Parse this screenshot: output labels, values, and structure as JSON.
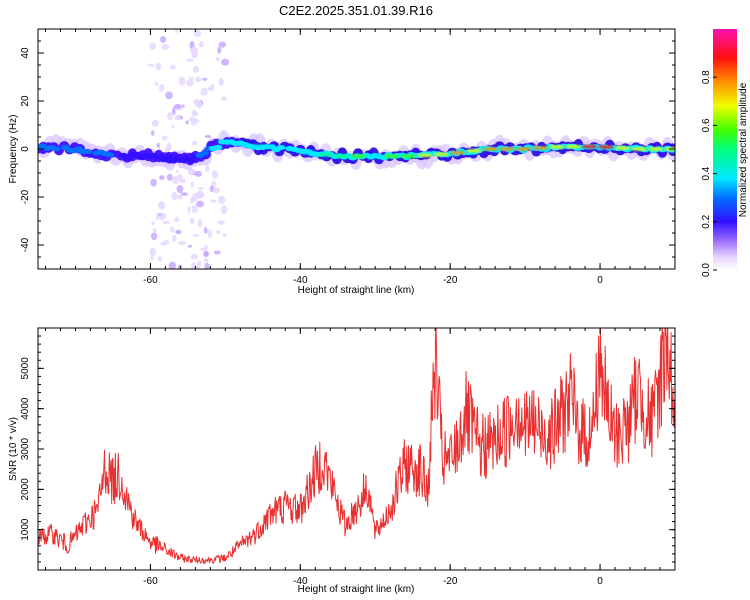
{
  "title": "C2E2.2025.351.01.39.R16",
  "chart_data": [
    {
      "type": "heatmap",
      "xlabel": "Height of straight line (km)",
      "ylabel": "Frequency (Hz)",
      "xlim": [
        -75,
        10
      ],
      "ylim": [
        -50,
        50
      ],
      "x_ticks": [
        -60,
        -40,
        -20,
        0
      ],
      "x_tick_labels": [
        "-60",
        "-40",
        "-20",
        "0"
      ],
      "y_ticks": [
        -40,
        -20,
        0,
        20,
        40
      ],
      "y_tick_labels": [
        "-40",
        "-20",
        "0",
        "20",
        "40"
      ],
      "colorbar": {
        "label": "Normalized spectral amplitude",
        "range": [
          0,
          1
        ],
        "ticks": [
          0.0,
          0.2,
          0.4,
          0.6,
          0.8
        ],
        "tick_labels": [
          "0.0",
          "0.2",
          "0.4",
          "0.6",
          "0.8"
        ]
      },
      "ridge": {
        "x": [
          -75,
          -70,
          -65,
          -60,
          -55,
          -50,
          -45,
          -40,
          -35,
          -30,
          -25,
          -20,
          -15,
          -10,
          -5,
          0,
          5,
          10
        ],
        "freq": [
          1,
          0,
          -3,
          -3,
          -5,
          3,
          1,
          -1,
          -3,
          -3,
          -3,
          -2,
          0,
          0,
          1,
          1,
          0,
          0
        ],
        "amplitude": [
          0.35,
          0.3,
          0.3,
          0.25,
          0.25,
          0.45,
          0.45,
          0.5,
          0.5,
          0.65,
          0.7,
          0.75,
          0.8,
          0.9,
          0.9,
          0.95,
          0.9,
          0.7
        ]
      },
      "noise_band_x": [
        -60,
        -50
      ]
    },
    {
      "type": "line",
      "xlabel": "Height of straight line (km)",
      "ylabel": "SNR (10 * v/v)",
      "xlim": [
        -75,
        10
      ],
      "ylim": [
        0,
        6000
      ],
      "x_ticks": [
        -60,
        -40,
        -20,
        0
      ],
      "x_tick_labels": [
        "-60",
        "-40",
        "-20",
        "0"
      ],
      "y_ticks": [
        1000,
        2000,
        3000,
        4000,
        5000
      ],
      "y_tick_labels": [
        "1000",
        "2000",
        "3000",
        "4000",
        "5000"
      ],
      "color": "#e83030",
      "x": [
        -75,
        -73,
        -71,
        -69,
        -67,
        -66,
        -65,
        -64,
        -63,
        -62,
        -60,
        -58,
        -56,
        -54,
        -52,
        -50,
        -48,
        -46,
        -44,
        -42,
        -40,
        -38,
        -37,
        -36,
        -34,
        -32,
        -31,
        -30,
        -28,
        -26,
        -24,
        -23,
        -22,
        -21,
        -20,
        -19,
        -18,
        -16,
        -14,
        -12,
        -11,
        -10,
        -9,
        -8,
        -6,
        -4,
        -3,
        -2,
        -1,
        0,
        1,
        2,
        4,
        5,
        6,
        7,
        8,
        9,
        10
      ],
      "values": [
        800,
        900,
        600,
        1100,
        1500,
        2600,
        2200,
        2400,
        1700,
        1200,
        700,
        500,
        300,
        250,
        250,
        300,
        600,
        900,
        1400,
        1600,
        1500,
        2400,
        2800,
        2200,
        1100,
        1700,
        2100,
        900,
        1500,
        2600,
        2500,
        1900,
        5200,
        2700,
        2700,
        3100,
        3900,
        3000,
        3200,
        3600,
        4100,
        3500,
        3700,
        3400,
        3500,
        4300,
        3600,
        3300,
        3500,
        5300,
        3900,
        3300,
        3700,
        4500,
        4000,
        3600,
        4700,
        5900,
        3700
      ]
    }
  ]
}
